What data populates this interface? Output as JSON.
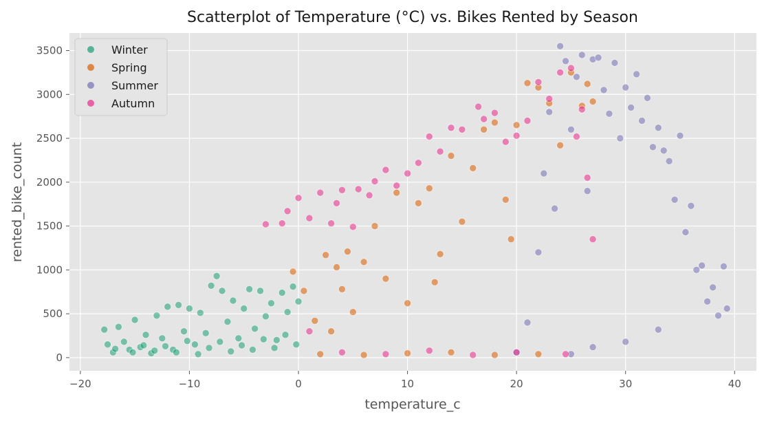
{
  "chart_data": {
    "type": "scatter",
    "title": "Scatterplot of Temperature (°C) vs. Bikes Rented by Season",
    "xlabel": "temperature_c",
    "ylabel": "rented_bike_count",
    "xlim": [
      -21,
      42
    ],
    "ylim": [
      -150,
      3700
    ],
    "xticks": [
      -20,
      -10,
      0,
      10,
      20,
      30,
      40
    ],
    "yticks": [
      0,
      500,
      1000,
      1500,
      2000,
      2500,
      3000,
      3500
    ],
    "grid": true,
    "legend_position": "top-left",
    "series": [
      {
        "name": "Winter",
        "color": "#1b9e77",
        "points": [
          [
            -17.8,
            320
          ],
          [
            -17.5,
            150
          ],
          [
            -17.0,
            60
          ],
          [
            -16.5,
            350
          ],
          [
            -16.0,
            180
          ],
          [
            -15.5,
            90
          ],
          [
            -15.0,
            430
          ],
          [
            -14.5,
            120
          ],
          [
            -14.0,
            260
          ],
          [
            -13.5,
            50
          ],
          [
            -13.0,
            480
          ],
          [
            -12.5,
            220
          ],
          [
            -12.0,
            580
          ],
          [
            -11.5,
            90
          ],
          [
            -11.0,
            600
          ],
          [
            -10.5,
            300
          ],
          [
            -10.0,
            560
          ],
          [
            -9.5,
            150
          ],
          [
            -9.0,
            510
          ],
          [
            -8.5,
            280
          ],
          [
            -8.0,
            820
          ],
          [
            -7.5,
            930
          ],
          [
            -7.0,
            760
          ],
          [
            -6.5,
            410
          ],
          [
            -6.0,
            650
          ],
          [
            -5.5,
            220
          ],
          [
            -5.0,
            560
          ],
          [
            -4.5,
            780
          ],
          [
            -4.0,
            330
          ],
          [
            -3.5,
            760
          ],
          [
            -3.0,
            470
          ],
          [
            -2.5,
            620
          ],
          [
            -2.0,
            200
          ],
          [
            -1.5,
            740
          ],
          [
            -1.0,
            520
          ],
          [
            -0.5,
            810
          ],
          [
            0.0,
            640
          ],
          [
            -16.8,
            100
          ],
          [
            -15.2,
            60
          ],
          [
            -14.2,
            140
          ],
          [
            -13.2,
            80
          ],
          [
            -12.2,
            130
          ],
          [
            -11.2,
            60
          ],
          [
            -10.2,
            190
          ],
          [
            -9.2,
            40
          ],
          [
            -8.2,
            110
          ],
          [
            -7.2,
            180
          ],
          [
            -6.2,
            70
          ],
          [
            -5.2,
            140
          ],
          [
            -4.2,
            90
          ],
          [
            -3.2,
            210
          ],
          [
            -2.2,
            110
          ],
          [
            -1.2,
            260
          ],
          [
            -0.2,
            150
          ]
        ]
      },
      {
        "name": "Spring",
        "color": "#d95f02",
        "points": [
          [
            -0.5,
            980
          ],
          [
            0.5,
            760
          ],
          [
            1.5,
            420
          ],
          [
            2.5,
            1170
          ],
          [
            3.0,
            300
          ],
          [
            3.5,
            1030
          ],
          [
            4.0,
            780
          ],
          [
            4.5,
            1210
          ],
          [
            5.0,
            520
          ],
          [
            6.0,
            1090
          ],
          [
            7.0,
            1500
          ],
          [
            8.0,
            900
          ],
          [
            9.0,
            1880
          ],
          [
            10.0,
            620
          ],
          [
            11.0,
            1760
          ],
          [
            12.0,
            1930
          ],
          [
            13.0,
            1180
          ],
          [
            14.0,
            2300
          ],
          [
            15.0,
            1550
          ],
          [
            16.0,
            2160
          ],
          [
            17.0,
            2600
          ],
          [
            18.0,
            2680
          ],
          [
            19.0,
            1800
          ],
          [
            20.0,
            2650
          ],
          [
            21.0,
            3130
          ],
          [
            22.0,
            3080
          ],
          [
            23.0,
            2900
          ],
          [
            24.0,
            2420
          ],
          [
            25.0,
            3250
          ],
          [
            26.0,
            2870
          ],
          [
            26.5,
            3120
          ],
          [
            27.0,
            2920
          ],
          [
            2.0,
            40
          ],
          [
            6.0,
            30
          ],
          [
            10.0,
            50
          ],
          [
            14.0,
            60
          ],
          [
            18.0,
            30
          ],
          [
            22.0,
            40
          ],
          [
            12.5,
            860
          ],
          [
            19.5,
            1350
          ]
        ]
      },
      {
        "name": "Summer",
        "color": "#7570b3",
        "points": [
          [
            20.0,
            60
          ],
          [
            21.0,
            400
          ],
          [
            22.0,
            1200
          ],
          [
            22.5,
            2100
          ],
          [
            23.0,
            2800
          ],
          [
            23.5,
            1700
          ],
          [
            24.0,
            3550
          ],
          [
            24.5,
            3380
          ],
          [
            25.0,
            2600
          ],
          [
            25.5,
            3200
          ],
          [
            26.0,
            3450
          ],
          [
            26.5,
            1900
          ],
          [
            27.0,
            3400
          ],
          [
            27.5,
            3420
          ],
          [
            28.0,
            3050
          ],
          [
            28.5,
            2780
          ],
          [
            29.0,
            3360
          ],
          [
            29.5,
            2500
          ],
          [
            30.0,
            3080
          ],
          [
            30.5,
            2850
          ],
          [
            31.0,
            3230
          ],
          [
            31.5,
            2700
          ],
          [
            32.0,
            2960
          ],
          [
            32.5,
            2400
          ],
          [
            33.0,
            2620
          ],
          [
            33.5,
            2360
          ],
          [
            34.0,
            2240
          ],
          [
            34.5,
            1800
          ],
          [
            35.0,
            2530
          ],
          [
            35.5,
            1430
          ],
          [
            36.0,
            1730
          ],
          [
            36.5,
            1000
          ],
          [
            37.0,
            1050
          ],
          [
            37.5,
            640
          ],
          [
            38.0,
            800
          ],
          [
            38.5,
            480
          ],
          [
            39.0,
            1040
          ],
          [
            39.3,
            560
          ],
          [
            33.0,
            320
          ],
          [
            30.0,
            180
          ],
          [
            27.0,
            120
          ],
          [
            25.0,
            40
          ]
        ]
      },
      {
        "name": "Autumn",
        "color": "#e7298a",
        "points": [
          [
            -3.0,
            1520
          ],
          [
            -1.5,
            1530
          ],
          [
            -1.0,
            1670
          ],
          [
            0.0,
            1820
          ],
          [
            1.0,
            1590
          ],
          [
            2.0,
            1880
          ],
          [
            3.0,
            1530
          ],
          [
            3.5,
            1760
          ],
          [
            4.0,
            1910
          ],
          [
            5.0,
            1490
          ],
          [
            5.5,
            1920
          ],
          [
            6.5,
            1850
          ],
          [
            7.0,
            2010
          ],
          [
            8.0,
            2140
          ],
          [
            9.0,
            1960
          ],
          [
            10.0,
            2100
          ],
          [
            11.0,
            2220
          ],
          [
            12.0,
            2520
          ],
          [
            13.0,
            2350
          ],
          [
            14.0,
            2620
          ],
          [
            15.0,
            2600
          ],
          [
            16.5,
            2860
          ],
          [
            17.0,
            2720
          ],
          [
            18.0,
            2790
          ],
          [
            19.0,
            2460
          ],
          [
            20.0,
            2530
          ],
          [
            21.0,
            2700
          ],
          [
            22.0,
            3140
          ],
          [
            23.0,
            2950
          ],
          [
            24.0,
            3250
          ],
          [
            25.0,
            3300
          ],
          [
            25.5,
            2520
          ],
          [
            26.0,
            2830
          ],
          [
            26.5,
            2050
          ],
          [
            27.0,
            1350
          ],
          [
            1.0,
            300
          ],
          [
            4.0,
            60
          ],
          [
            8.0,
            40
          ],
          [
            12.0,
            80
          ],
          [
            16.0,
            30
          ],
          [
            20.0,
            60
          ],
          [
            24.5,
            40
          ]
        ]
      }
    ]
  }
}
